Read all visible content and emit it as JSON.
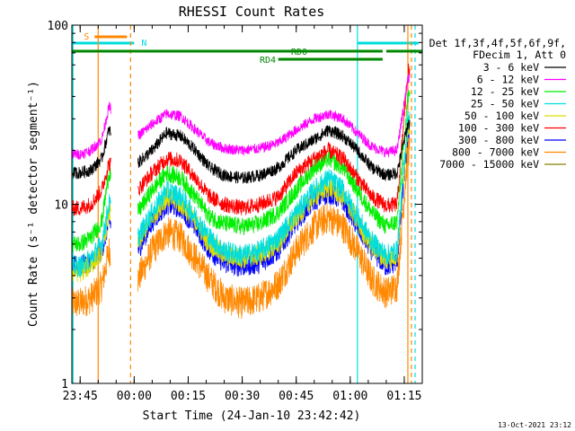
{
  "chart_data": {
    "type": "line",
    "title": "RHESSI Count Rates",
    "xlabel": "Start Time (24-Jan-10 23:42:42)",
    "ylabel": "Count Rate (s⁻¹ detector segment⁻¹)",
    "y_scale": "log",
    "ylim": [
      1,
      100
    ],
    "xlim": [
      "23:42:42",
      "01:20:00"
    ],
    "x_ticks": [
      "23:45",
      "00:00",
      "00:15",
      "00:30",
      "00:45",
      "01:00",
      "01:15"
    ],
    "y_ticks": [
      "1",
      "10",
      "100"
    ],
    "grid": false,
    "legend_position": "right",
    "legend_header": [
      "Det 1f,3f,4f,5f,6f,9f,",
      "FDecim 1, Att 0"
    ],
    "footer_date": "13-Oct-2021 23:12",
    "series": [
      {
        "name": "3 - 6 keV",
        "color": "#000000",
        "x": [
          "23:45",
          "23:48",
          "23:51",
          "23:53",
          "00:01",
          "00:05",
          "00:09",
          "00:13",
          "00:17",
          "00:21",
          "00:25",
          "00:30",
          "00:35",
          "00:40",
          "00:45",
          "00:50",
          "00:54",
          "00:58",
          "01:02",
          "01:06",
          "01:10",
          "01:13",
          "01:16"
        ],
        "values": [
          15,
          15.5,
          18,
          26,
          17,
          20,
          25,
          24,
          20,
          16,
          14.5,
          14,
          14.5,
          16,
          20,
          23,
          26,
          24,
          20,
          16,
          14.5,
          15,
          28
        ]
      },
      {
        "name": "6 - 12 keV",
        "color": "#ff00ff",
        "x": [
          "23:45",
          "23:48",
          "23:51",
          "23:53",
          "00:01",
          "00:05",
          "00:09",
          "00:13",
          "00:17",
          "00:21",
          "00:25",
          "00:30",
          "00:35",
          "00:40",
          "00:45",
          "00:50",
          "00:54",
          "00:58",
          "01:02",
          "01:06",
          "01:10",
          "01:13",
          "01:16"
        ],
        "values": [
          19,
          20,
          23,
          35,
          24,
          28,
          32,
          31,
          26,
          22,
          20.5,
          20,
          20.5,
          22,
          26,
          30,
          32,
          30,
          25,
          21,
          19.5,
          20,
          50
        ]
      },
      {
        "name": "12 - 25 keV",
        "color": "#00ee00",
        "x": [
          "23:45",
          "23:48",
          "23:51",
          "23:53",
          "00:01",
          "00:05",
          "00:09",
          "00:13",
          "00:17",
          "00:21",
          "00:25",
          "00:30",
          "00:35",
          "00:40",
          "00:45",
          "00:50",
          "00:54",
          "00:58",
          "01:02",
          "01:06",
          "01:10",
          "01:13",
          "01:16"
        ],
        "values": [
          6,
          6.5,
          8,
          15,
          9,
          12,
          15,
          14,
          11,
          8.5,
          7.8,
          7.5,
          7.8,
          9,
          12,
          16,
          18,
          16,
          12,
          9,
          7.5,
          8,
          40
        ]
      },
      {
        "name": "25 - 50 keV",
        "color": "#00dddd",
        "x": [
          "23:45",
          "23:48",
          "23:51",
          "23:53",
          "00:01",
          "00:05",
          "00:09",
          "00:13",
          "00:17",
          "00:21",
          "00:25",
          "00:30",
          "00:35",
          "00:40",
          "00:45",
          "00:50",
          "00:54",
          "00:58",
          "01:02",
          "01:06",
          "01:10",
          "01:13",
          "01:16"
        ],
        "values": [
          4.5,
          5,
          6,
          10,
          6.5,
          9,
          12,
          11,
          8.5,
          6.5,
          5.5,
          5.2,
          5.5,
          6.5,
          9,
          12,
          14,
          12,
          8.5,
          6.2,
          5.2,
          5.5,
          30
        ]
      },
      {
        "name": "50 - 100 keV",
        "color": "#dddd00",
        "x": [
          "23:45",
          "23:48",
          "23:51",
          "23:53",
          "00:01",
          "00:05",
          "00:09",
          "00:13",
          "00:17",
          "00:21",
          "00:25",
          "00:30",
          "00:35",
          "00:40",
          "00:45",
          "00:50",
          "00:54",
          "00:58",
          "01:02",
          "01:06",
          "01:10",
          "01:13",
          "01:16"
        ],
        "values": [
          4.2,
          4.6,
          5.5,
          9,
          6,
          8.5,
          11,
          10,
          8,
          6,
          5.2,
          5,
          5.2,
          6,
          8.5,
          11,
          12.5,
          11,
          8,
          5.8,
          4.9,
          5.2,
          28
        ]
      },
      {
        "name": "100 - 300 keV",
        "color": "#ff0000",
        "x": [
          "23:45",
          "23:48",
          "23:51",
          "23:53",
          "00:01",
          "00:05",
          "00:09",
          "00:13",
          "00:17",
          "00:21",
          "00:25",
          "00:30",
          "00:35",
          "00:40",
          "00:45",
          "00:50",
          "00:54",
          "00:58",
          "01:02",
          "01:06",
          "01:10",
          "01:13",
          "01:16"
        ],
        "values": [
          9.5,
          10,
          12,
          17,
          12,
          15,
          18,
          17.5,
          14,
          11,
          10,
          9.5,
          10,
          11,
          15,
          18,
          20,
          18,
          14,
          11,
          9.8,
          10,
          55
        ]
      },
      {
        "name": "300 - 800 keV",
        "color": "#0000ff",
        "x": [
          "23:45",
          "23:48",
          "23:51",
          "23:53",
          "00:01",
          "00:05",
          "00:09",
          "00:13",
          "00:17",
          "00:21",
          "00:25",
          "00:30",
          "00:35",
          "00:40",
          "00:45",
          "00:50",
          "00:54",
          "00:58",
          "01:02",
          "01:06",
          "01:10",
          "01:13",
          "01:16"
        ],
        "values": [
          4.5,
          4.8,
          5.5,
          8,
          5.5,
          8,
          10,
          9.5,
          7.5,
          5.5,
          4.7,
          4.5,
          4.7,
          5.5,
          8,
          10.5,
          11.5,
          10.5,
          7.5,
          5.5,
          4.5,
          4.8,
          25
        ]
      },
      {
        "name": "800 - 7000 keV",
        "color": "#ff8800",
        "x": [
          "23:45",
          "23:48",
          "23:51",
          "23:53",
          "00:01",
          "00:05",
          "00:09",
          "00:13",
          "00:17",
          "00:21",
          "00:25",
          "00:30",
          "00:35",
          "00:40",
          "00:45",
          "00:50",
          "00:54",
          "00:58",
          "01:02",
          "01:06",
          "01:10",
          "01:13",
          "01:16"
        ],
        "values": [
          2.8,
          3,
          3.5,
          5.5,
          3.8,
          5.5,
          7,
          6.5,
          5,
          3.8,
          3,
          2.8,
          3,
          3.6,
          5.5,
          7.5,
          8.5,
          7.5,
          5.5,
          3.8,
          3.2,
          3.5,
          20
        ]
      },
      {
        "name": "7000 - 15000 keV",
        "color": "#808000",
        "x": [],
        "values": []
      }
    ],
    "attenuator_markers": [
      {
        "label": "S",
        "color": "#ff8800",
        "bar_x": [
          "23:49",
          "23:58"
        ],
        "line_x": "23:50",
        "dashed_x": "23:59"
      },
      {
        "label": "",
        "color": "#ff8800",
        "bar_x": [],
        "line_x": "01:16",
        "dashed_x": "01:17"
      }
    ],
    "night_markers": [
      {
        "label": "N",
        "color": "#00dddd",
        "bar_x": [
          "23:42:42",
          "00:00"
        ],
        "line_x": "23:43"
      },
      {
        "label": "",
        "color": "#00dddd",
        "bar_x": [
          "01:02",
          "01:19"
        ],
        "line_x": "01:02",
        "dashed_x": "01:18"
      }
    ],
    "decimation_bars": [
      {
        "label": "RD0",
        "color": "#008800",
        "y_level": "upper",
        "bar_x": [
          "23:42:42",
          "01:20:00"
        ],
        "gap_x": [
          "01:09",
          "01:10"
        ]
      },
      {
        "label": "RD4",
        "color": "#008800",
        "y_level": "lower",
        "bar_x": [
          "00:40",
          "01:09"
        ]
      }
    ]
  }
}
